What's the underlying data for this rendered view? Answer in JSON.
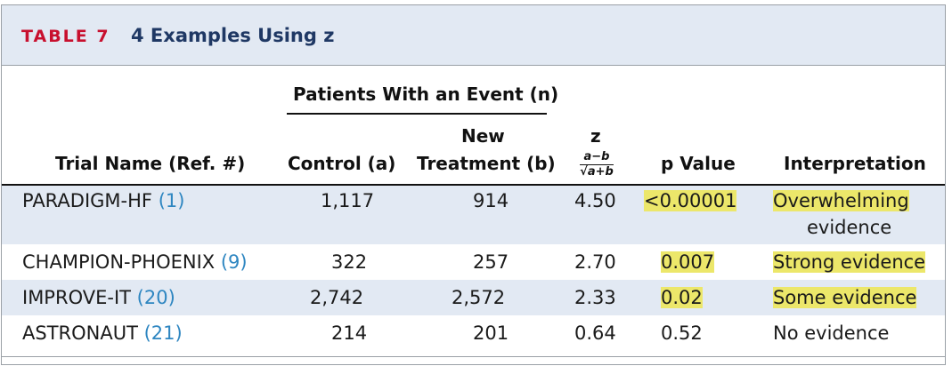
{
  "table": {
    "label": "TABLE 7",
    "title": "4 Examples Using z",
    "group_header": "Patients With an Event (n)",
    "columns": {
      "trial": "Trial Name (Ref. #)",
      "control": "Control (a)",
      "new_line1": "New",
      "new_line2": "Treatment (b)",
      "z": "z",
      "z_formula_num": "a−b",
      "z_formula_den": "√a+b",
      "p": "p Value",
      "interp": "Interpretation"
    },
    "rows": [
      {
        "trial": "PARADIGM-HF",
        "ref": "(1)",
        "control": "1,117",
        "new": "914",
        "z": "4.50",
        "p": "<0.00001",
        "interp_line1": "Overwhelming",
        "interp_line2": "evidence",
        "p_highlight": true,
        "interp_highlight": true
      },
      {
        "trial": "CHAMPION-PHOENIX",
        "ref": "(9)",
        "control": "322",
        "new": "257",
        "z": "2.70",
        "p": "0.007",
        "interp_line1": "Strong evidence",
        "p_highlight": true,
        "interp_highlight": true
      },
      {
        "trial": "IMPROVE-IT",
        "ref": "(20)",
        "control": "2,742",
        "new": "2,572",
        "z": "2.33",
        "p": "0.02",
        "interp_line1": "Some evidence",
        "p_highlight": true,
        "interp_highlight": true
      },
      {
        "trial": "ASTRONAUT",
        "ref": "(21)",
        "control": "214",
        "new": "201",
        "z": "0.64",
        "p": "0.52",
        "interp_line1": "No evidence",
        "p_highlight": false,
        "interp_highlight": false
      }
    ],
    "colors": {
      "label": "#c8102e",
      "title": "#1f3864",
      "shade": "#e2e9f3",
      "highlight": "#ece76a",
      "ref_link": "#2e86c1"
    }
  }
}
